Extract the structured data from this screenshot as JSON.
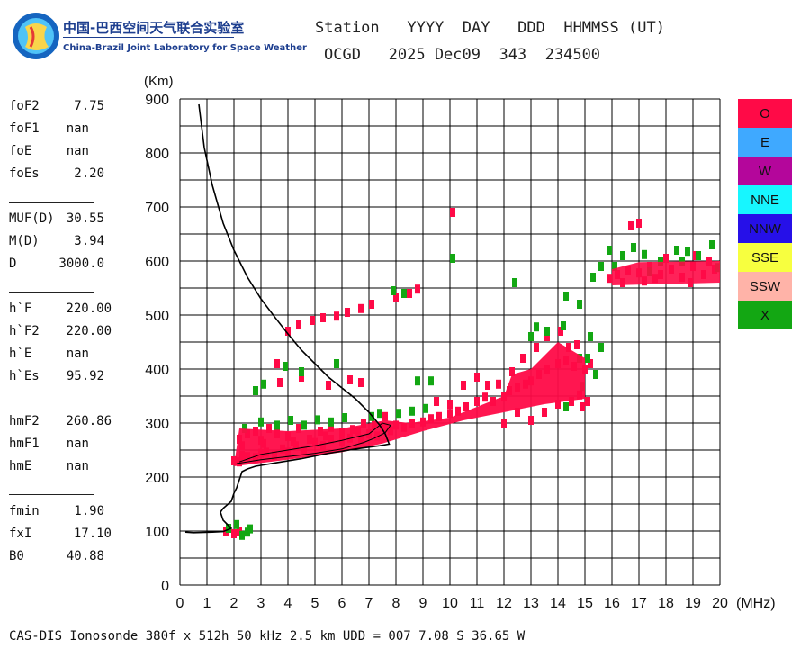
{
  "logo": {
    "title_cn": "中国-巴西空间天气联合实验室",
    "title_en": "China-Brazil Joint Laboratory for Space Weather"
  },
  "header": {
    "line1": "Station   YYYY  DAY   DDD  HHMMSS (UT)",
    "line2": "OCGD   2025 Dec09  343  234500"
  },
  "params": {
    "group1": [
      {
        "label": "foF2",
        "value": "7.75"
      },
      {
        "label": "foF1",
        "value": "nan"
      },
      {
        "label": "foE",
        "value": "nan"
      },
      {
        "label": "foEs",
        "value": "2.20"
      }
    ],
    "group2": [
      {
        "label": "MUF(D)",
        "value": "30.55"
      },
      {
        "label": "M(D)",
        "value": "3.94"
      },
      {
        "label": "D",
        "value": "3000.0"
      }
    ],
    "group3": [
      {
        "label": "h`F",
        "value": "220.00"
      },
      {
        "label": "h`F2",
        "value": "220.00"
      },
      {
        "label": "h`E",
        "value": "nan"
      },
      {
        "label": "h`Es",
        "value": "95.92"
      }
    ],
    "group4": [
      {
        "label": "hmF2",
        "value": "260.86"
      },
      {
        "label": "hmF1",
        "value": "nan"
      },
      {
        "label": "hmE",
        "value": "nan"
      }
    ],
    "group5": [
      {
        "label": "fmin",
        "value": "1.90"
      },
      {
        "label": "fxI",
        "value": "17.10"
      },
      {
        "label": "B0",
        "value": "40.88"
      }
    ]
  },
  "legend": [
    {
      "label": "O",
      "color": "#ff0a47"
    },
    {
      "label": "E",
      "color": "#3fa9ff"
    },
    {
      "label": "W",
      "color": "#b4069b"
    },
    {
      "label": "NNE",
      "color": "#17f6ff"
    },
    {
      "label": "NNW",
      "color": "#2610e8"
    },
    {
      "label": "SSE",
      "color": "#f7ff3f"
    },
    {
      "label": "SSW",
      "color": "#ffb3a8"
    },
    {
      "label": "X",
      "color": "#13a713"
    }
  ],
  "footer": "CAS-DIS Ionosonde 380f x 512h 50 kHz 2.5 km UDD = 007 7.08 S 36.65 W",
  "chart_data": {
    "type": "scatter",
    "title": "",
    "xlabel": "(MHz)",
    "ylabel": "(Km)",
    "xlim": [
      0,
      20
    ],
    "ylim": [
      0,
      900
    ],
    "x_ticks": [
      0,
      1,
      2,
      3,
      4,
      5,
      6,
      7,
      8,
      9,
      10,
      11,
      12,
      13,
      14,
      15,
      16,
      17,
      18,
      19,
      20
    ],
    "y_ticks": [
      0,
      100,
      200,
      300,
      400,
      500,
      600,
      700,
      800,
      900
    ],
    "grid": true,
    "series": [
      {
        "name": "O",
        "color": "#ff0a47",
        "points": [
          [
            1.7,
            100
          ],
          [
            2.0,
            95
          ],
          [
            2.2,
            99
          ],
          [
            2.0,
            230
          ],
          [
            2.2,
            228
          ],
          [
            2.3,
            240
          ],
          [
            2.5,
            238
          ],
          [
            2.8,
            236
          ],
          [
            3.0,
            244
          ],
          [
            3.2,
            246
          ],
          [
            3.5,
            240
          ],
          [
            3.8,
            252
          ],
          [
            4.0,
            246
          ],
          [
            4.3,
            258
          ],
          [
            4.6,
            250
          ],
          [
            5.0,
            264
          ],
          [
            5.3,
            258
          ],
          [
            5.6,
            270
          ],
          [
            6.0,
            265
          ],
          [
            6.3,
            272
          ],
          [
            6.7,
            270
          ],
          [
            7.0,
            280
          ],
          [
            7.3,
            276
          ],
          [
            7.6,
            292
          ],
          [
            7.8,
            286
          ],
          [
            8.0,
            296
          ],
          [
            8.3,
            292
          ],
          [
            8.6,
            300
          ],
          [
            9.0,
            302
          ],
          [
            9.3,
            308
          ],
          [
            9.6,
            312
          ],
          [
            10.0,
            318
          ],
          [
            10.3,
            322
          ],
          [
            10.6,
            330
          ],
          [
            11.0,
            340
          ],
          [
            11.3,
            348
          ],
          [
            11.6,
            340
          ],
          [
            12.0,
            350
          ],
          [
            12.2,
            360
          ],
          [
            12.5,
            365
          ],
          [
            12.8,
            372
          ],
          [
            13.0,
            378
          ],
          [
            13.3,
            390
          ],
          [
            13.6,
            400
          ],
          [
            14.0,
            410
          ],
          [
            14.3,
            415
          ],
          [
            14.6,
            405
          ],
          [
            15.0,
            400
          ],
          [
            15.2,
            410
          ],
          [
            14.8,
            352
          ],
          [
            15.1,
            340
          ],
          [
            2.2,
            270
          ],
          [
            2.5,
            280
          ],
          [
            2.8,
            285
          ],
          [
            3.0,
            268
          ],
          [
            3.3,
            290
          ],
          [
            3.6,
            280
          ],
          [
            4.0,
            275
          ],
          [
            4.4,
            290
          ],
          [
            4.8,
            270
          ],
          [
            5.2,
            285
          ],
          [
            5.6,
            292
          ],
          [
            6.0,
            282
          ],
          [
            6.4,
            288
          ],
          [
            6.8,
            300
          ],
          [
            7.2,
            296
          ],
          [
            7.6,
            312
          ],
          [
            2.3,
            258
          ],
          [
            3.1,
            262
          ],
          [
            4.2,
            266
          ],
          [
            5.4,
            276
          ],
          [
            6.6,
            285
          ],
          [
            9.5,
            340
          ],
          [
            10.0,
            335
          ],
          [
            10.5,
            370
          ],
          [
            11.0,
            385
          ],
          [
            11.4,
            370
          ],
          [
            11.8,
            372
          ],
          [
            12.3,
            395
          ],
          [
            12.7,
            420
          ],
          [
            13.2,
            440
          ],
          [
            13.6,
            460
          ],
          [
            14.1,
            470
          ],
          [
            14.4,
            440
          ],
          [
            14.7,
            445
          ],
          [
            13.0,
            305
          ],
          [
            13.5,
            320
          ],
          [
            14.0,
            335
          ],
          [
            14.5,
            340
          ],
          [
            14.9,
            330
          ],
          [
            12.5,
            320
          ],
          [
            12.0,
            300
          ],
          [
            4.0,
            470
          ],
          [
            4.4,
            483
          ],
          [
            4.9,
            490
          ],
          [
            5.3,
            495
          ],
          [
            5.8,
            498
          ],
          [
            6.2,
            505
          ],
          [
            6.7,
            512
          ],
          [
            7.1,
            520
          ],
          [
            8.0,
            532
          ],
          [
            8.5,
            540
          ],
          [
            8.8,
            548
          ],
          [
            3.6,
            410
          ],
          [
            4.5,
            385
          ],
          [
            5.5,
            370
          ],
          [
            6.3,
            380
          ],
          [
            6.7,
            375
          ],
          [
            3.7,
            375
          ],
          [
            10.1,
            690
          ],
          [
            16.7,
            665
          ],
          [
            17.0,
            670
          ],
          [
            17.6,
            568
          ],
          [
            15.9,
            568
          ],
          [
            16.2,
            575
          ],
          [
            16.6,
            582
          ],
          [
            17.0,
            578
          ],
          [
            17.4,
            590
          ],
          [
            17.8,
            575
          ],
          [
            18.2,
            585
          ],
          [
            18.6,
            570
          ],
          [
            19.0,
            590
          ],
          [
            19.4,
            575
          ],
          [
            19.8,
            585
          ],
          [
            19.6,
            600
          ],
          [
            18.9,
            560
          ],
          [
            18.0,
            605
          ],
          [
            17.2,
            563
          ],
          [
            16.4,
            560
          ],
          [
            19.1,
            610
          ]
        ]
      },
      {
        "name": "X",
        "color": "#13a713",
        "points": [
          [
            1.8,
            105
          ],
          [
            2.1,
            112
          ],
          [
            2.3,
            92
          ],
          [
            2.5,
            98
          ],
          [
            2.6,
            104
          ],
          [
            2.4,
            290
          ],
          [
            3.0,
            302
          ],
          [
            3.6,
            296
          ],
          [
            4.1,
            305
          ],
          [
            4.6,
            296
          ],
          [
            5.1,
            306
          ],
          [
            6.1,
            310
          ],
          [
            7.1,
            312
          ],
          [
            8.1,
            318
          ],
          [
            8.6,
            322
          ],
          [
            9.1,
            327
          ],
          [
            7.4,
            318
          ],
          [
            5.6,
            302
          ],
          [
            2.8,
            360
          ],
          [
            3.1,
            372
          ],
          [
            3.9,
            405
          ],
          [
            4.5,
            395
          ],
          [
            5.8,
            410
          ],
          [
            8.8,
            378
          ],
          [
            9.3,
            378
          ],
          [
            13.0,
            460
          ],
          [
            13.2,
            478
          ],
          [
            13.6,
            470
          ],
          [
            14.2,
            480
          ],
          [
            14.8,
            420
          ],
          [
            15.2,
            460
          ],
          [
            15.6,
            440
          ],
          [
            14.9,
            368
          ],
          [
            15.1,
            420
          ],
          [
            15.4,
            390
          ],
          [
            14.3,
            330
          ],
          [
            10.1,
            605
          ],
          [
            15.3,
            570
          ],
          [
            15.6,
            590
          ],
          [
            15.9,
            620
          ],
          [
            16.4,
            610
          ],
          [
            16.8,
            625
          ],
          [
            17.2,
            612
          ],
          [
            17.8,
            600
          ],
          [
            18.4,
            620
          ],
          [
            18.8,
            618
          ],
          [
            19.2,
            610
          ],
          [
            19.7,
            630
          ],
          [
            16.1,
            590
          ],
          [
            17.4,
            580
          ],
          [
            18.6,
            600
          ],
          [
            19.9,
            588
          ],
          [
            12.4,
            560
          ],
          [
            14.3,
            535
          ],
          [
            14.8,
            520
          ],
          [
            7.9,
            545
          ],
          [
            8.3,
            540
          ]
        ]
      }
    ],
    "profile": {
      "name": "electron density profile",
      "color": "#000000",
      "points": [
        [
          0.7,
          890
        ],
        [
          0.9,
          810
        ],
        [
          1.2,
          740
        ],
        [
          1.6,
          670
        ],
        [
          2.0,
          620
        ],
        [
          2.5,
          570
        ],
        [
          3.0,
          530
        ],
        [
          3.5,
          497
        ],
        [
          4.0,
          465
        ],
        [
          4.5,
          435
        ],
        [
          5.0,
          410
        ],
        [
          5.5,
          385
        ],
        [
          6.0,
          365
        ],
        [
          6.5,
          345
        ],
        [
          7.0,
          320
        ],
        [
          7.4,
          296
        ],
        [
          7.6,
          280
        ],
        [
          7.75,
          261
        ],
        [
          7.4,
          258
        ],
        [
          6.5,
          252
        ],
        [
          5.5,
          244
        ],
        [
          4.5,
          234
        ],
        [
          3.5,
          226
        ],
        [
          2.8,
          220
        ],
        [
          2.5,
          215
        ],
        [
          2.3,
          210
        ],
        [
          2.1,
          180
        ],
        [
          2.0,
          170
        ],
        [
          1.9,
          155
        ],
        [
          1.6,
          142
        ],
        [
          1.5,
          135
        ],
        [
          1.6,
          120
        ],
        [
          1.8,
          110
        ],
        [
          1.9,
          105
        ],
        [
          1.6,
          99
        ],
        [
          1.2,
          98
        ],
        [
          0.5,
          97
        ],
        [
          0.2,
          98
        ]
      ]
    },
    "trace": {
      "name": "virtual height trace",
      "color": "#000000",
      "points": [
        [
          2.1,
          225
        ],
        [
          3.0,
          232
        ],
        [
          4.0,
          238
        ],
        [
          5.0,
          244
        ],
        [
          6.0,
          252
        ],
        [
          6.8,
          264
        ],
        [
          7.2,
          272
        ],
        [
          7.6,
          282
        ],
        [
          7.8,
          296
        ],
        [
          7.5,
          300
        ],
        [
          7.0,
          280
        ],
        [
          6.0,
          268
        ],
        [
          5.0,
          258
        ],
        [
          4.0,
          250
        ],
        [
          3.0,
          242
        ],
        [
          2.2,
          228
        ]
      ]
    }
  }
}
